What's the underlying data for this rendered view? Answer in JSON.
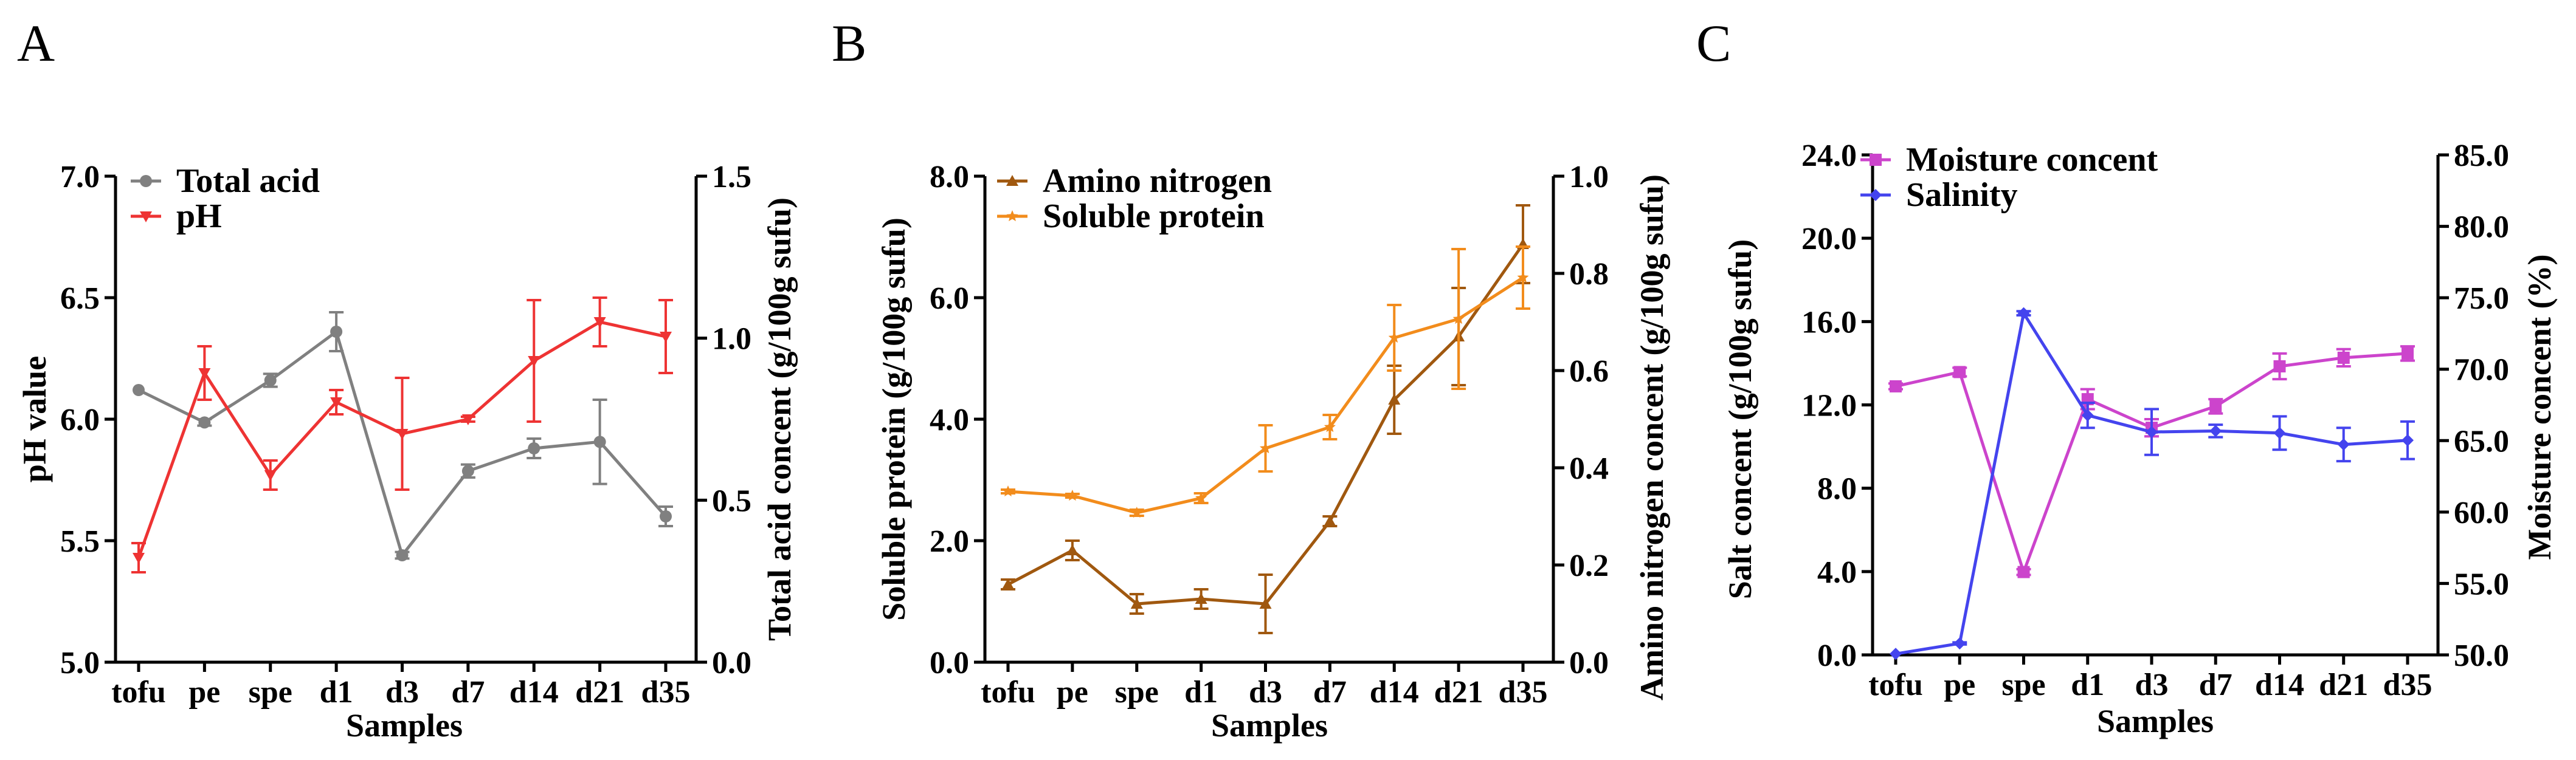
{
  "chart_data": [
    {
      "type": "line",
      "panel": "A",
      "categories": [
        "tofu",
        "pe",
        "spe",
        "d1",
        "d3",
        "d7",
        "d14",
        "d21",
        "d35"
      ],
      "xlabel": "Samples",
      "ylabel_left": "pH value",
      "ylabel_right": "Total acid concent (g/100g sufu)",
      "ylim_left": [
        5.0,
        7.0
      ],
      "ylim_right": [
        0.0,
        1.5
      ],
      "yticks_left": [
        "5.0",
        "5.5",
        "6.0",
        "6.5",
        "7.0"
      ],
      "yticks_right": [
        "0.0",
        "0.5",
        "1.0",
        "1.5"
      ],
      "legend_position": "top-left",
      "series": [
        {
          "name": "Total acid",
          "axis": "right",
          "color": "#808080",
          "marker": "circle",
          "values": [
            0.84,
            0.74,
            0.87,
            1.02,
            0.33,
            0.59,
            0.66,
            0.68,
            0.45
          ],
          "errors": [
            0.0,
            0.01,
            0.02,
            0.06,
            0.01,
            0.02,
            0.03,
            0.13,
            0.03
          ]
        },
        {
          "name": "pH",
          "axis": "left",
          "color": "#ee3333",
          "marker": "triangle-down",
          "values": [
            5.43,
            6.19,
            5.77,
            6.07,
            5.94,
            6.0,
            6.24,
            6.4,
            6.34
          ],
          "errors": [
            0.06,
            0.11,
            0.06,
            0.05,
            0.23,
            0.01,
            0.25,
            0.1,
            0.15
          ]
        }
      ]
    },
    {
      "type": "line",
      "panel": "B",
      "categories": [
        "tofu",
        "pe",
        "spe",
        "d1",
        "d3",
        "d7",
        "d14",
        "d21",
        "d35"
      ],
      "xlabel": "Samples",
      "ylabel_left": "Soluble protein (g/100g sufu)",
      "ylabel_right": "Amino nitrogen concent (g/100g sufu)",
      "ylim_left": [
        0.0,
        8.0
      ],
      "ylim_right": [
        0.0,
        1.0
      ],
      "yticks_left": [
        "0.0",
        "2.0",
        "4.0",
        "6.0",
        "8.0"
      ],
      "yticks_right": [
        "0.0",
        "0.2",
        "0.4",
        "0.6",
        "0.8",
        "1.0"
      ],
      "legend_position": "top-left",
      "series": [
        {
          "name": "Amino nitrogen",
          "axis": "right",
          "color": "#a0580f",
          "marker": "triangle-up",
          "values": [
            0.16,
            0.23,
            0.12,
            0.13,
            0.12,
            0.29,
            0.54,
            0.67,
            0.86
          ],
          "errors": [
            0.01,
            0.02,
            0.02,
            0.02,
            0.06,
            0.01,
            0.07,
            0.1,
            0.08
          ]
        },
        {
          "name": "Soluble protein",
          "axis": "left",
          "color": "#f28c1c",
          "marker": "star",
          "values": [
            2.81,
            2.74,
            2.46,
            2.7,
            3.52,
            3.87,
            5.34,
            5.65,
            6.33
          ],
          "errors": [
            0.03,
            0.03,
            0.05,
            0.08,
            0.38,
            0.2,
            0.54,
            1.15,
            0.51
          ]
        }
      ]
    },
    {
      "type": "line",
      "panel": "C",
      "categories": [
        "tofu",
        "pe",
        "spe",
        "d1",
        "d3",
        "d7",
        "d14",
        "d21",
        "d35"
      ],
      "xlabel": "Samples",
      "ylabel_left": "Salt concent (g/100g sufu)",
      "ylabel_right": "Moisture concent (%)",
      "ylim_left": [
        0.0,
        24.0
      ],
      "ylim_right": [
        50.0,
        85.0
      ],
      "yticks_left": [
        "0.0",
        "4.0",
        "8.0",
        "12.0",
        "16.0",
        "20.0",
        "24.0"
      ],
      "yticks_right": [
        "50.0",
        "55.0",
        "60.0",
        "65.0",
        "70.0",
        "75.0",
        "80.0",
        "85.0"
      ],
      "legend_position": "top-left",
      "series": [
        {
          "name": "Moisture concent",
          "axis": "right",
          "color": "#cc44cc",
          "marker": "square",
          "values": [
            68.8,
            69.8,
            55.8,
            67.9,
            65.9,
            67.4,
            70.2,
            70.8,
            71.1
          ],
          "errors": [
            0.2,
            0.3,
            0.2,
            0.7,
            0.6,
            0.5,
            0.9,
            0.6,
            0.5
          ]
        },
        {
          "name": "Salinity",
          "axis": "left",
          "color": "#4444ee",
          "marker": "diamond",
          "values": [
            0.05,
            0.55,
            16.4,
            11.5,
            10.7,
            10.75,
            10.65,
            10.1,
            10.3
          ],
          "errors": [
            0.0,
            0.05,
            0.1,
            0.6,
            1.1,
            0.3,
            0.8,
            0.8,
            0.9
          ]
        }
      ]
    }
  ]
}
